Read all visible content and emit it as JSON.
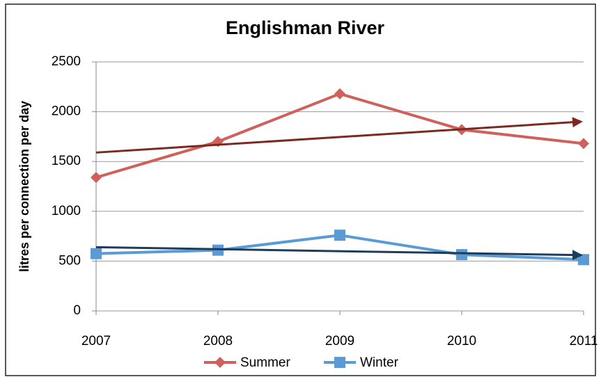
{
  "chart_data": {
    "type": "line",
    "title": "Englishman River",
    "y_label": "litres per connection per day",
    "x": [
      2007,
      2008,
      2009,
      2010,
      2011
    ],
    "xlim": [
      2007,
      2011
    ],
    "xticks": [
      2007,
      2008,
      2009,
      2010,
      2011
    ],
    "ylim": [
      0,
      2500
    ],
    "yticks": [
      0,
      500,
      1000,
      1500,
      2000,
      2500
    ],
    "grid": true,
    "series": [
      {
        "name": "Summer",
        "color": "#d0605c",
        "marker": "diamond",
        "values": [
          1340,
          1700,
          2180,
          1820,
          1680
        ]
      },
      {
        "name": "Winter",
        "color": "#5b9bd5",
        "marker": "square",
        "values": [
          575,
          610,
          760,
          565,
          515
        ]
      }
    ],
    "trends": [
      {
        "color": "#7b2a22",
        "values": [
          1590,
          1900
        ]
      },
      {
        "color": "#1f3b5a",
        "values": [
          640,
          560
        ]
      }
    ],
    "legend": "bottom"
  }
}
